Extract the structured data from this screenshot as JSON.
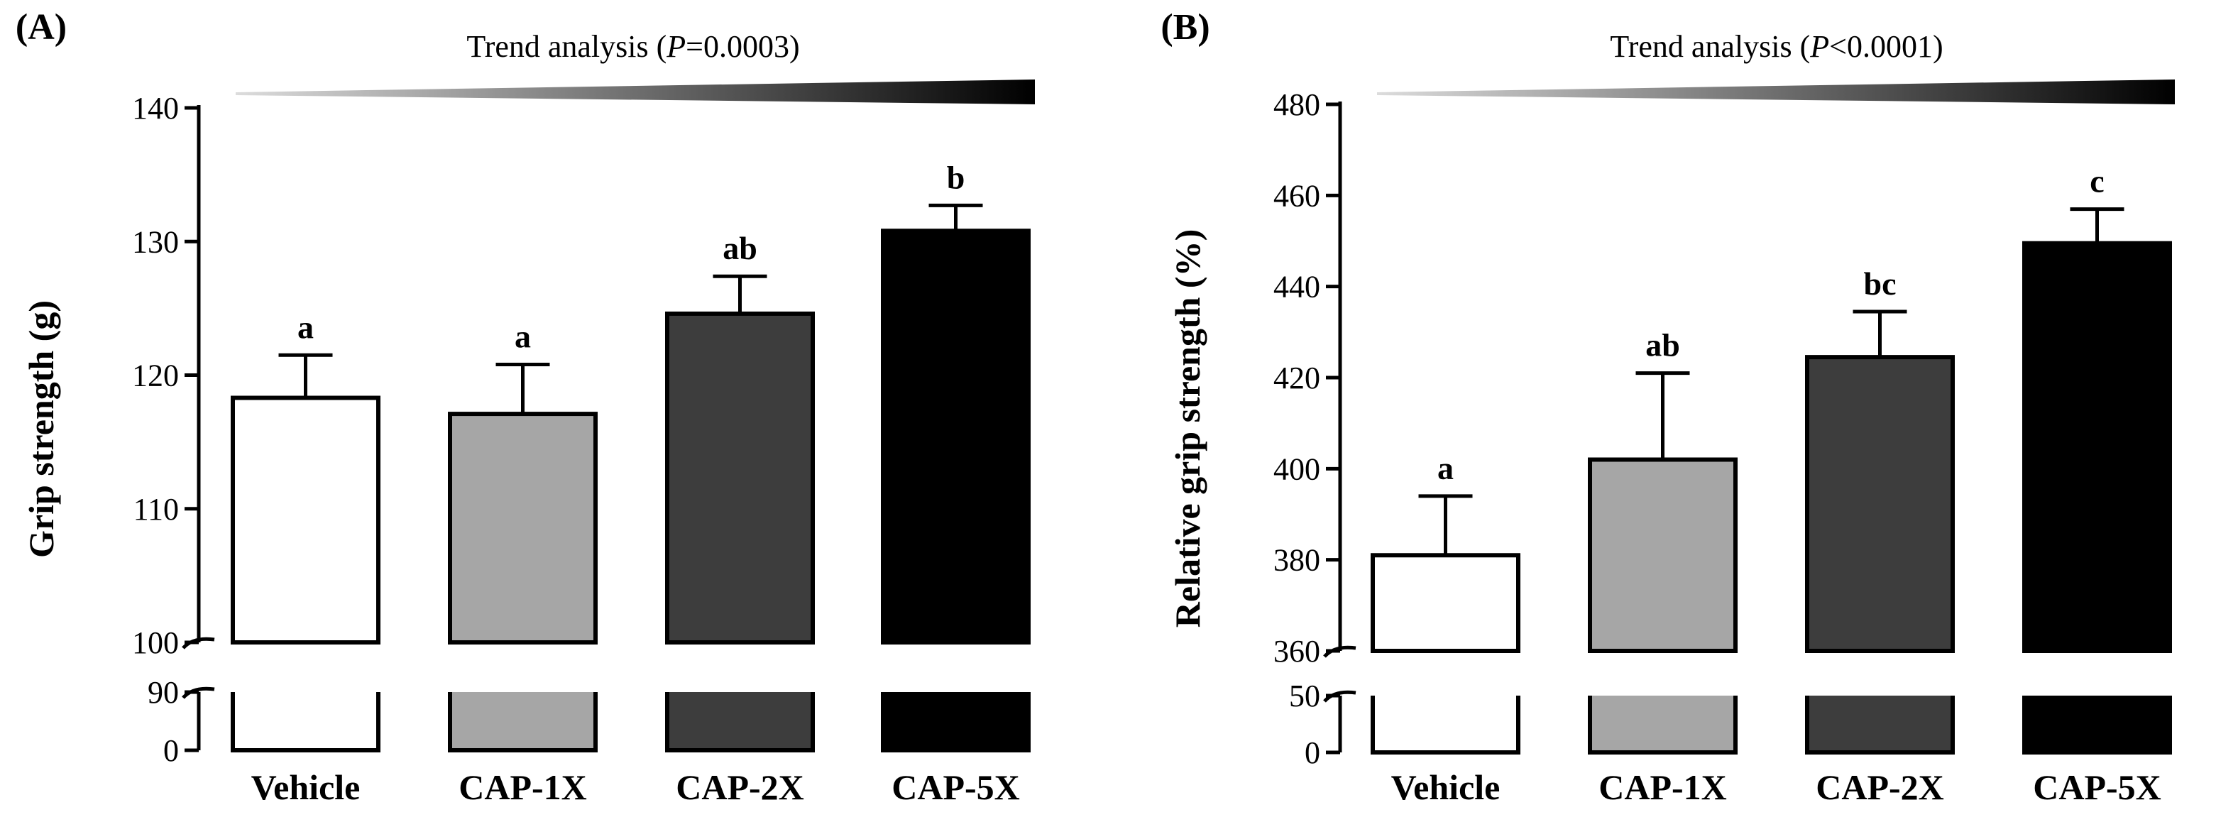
{
  "chart_data": [
    {
      "panel_label": "(A)",
      "type": "bar",
      "trend_text": {
        "prefix": "Trend analysis (",
        "italic": "P",
        "suffix": "=0.0003)"
      },
      "ylabel": "Grip strength (g)",
      "categories": [
        "Vehicle",
        "CAP-1X",
        "CAP-2X",
        "CAP-5X"
      ],
      "values": [
        118.3,
        117.1,
        124.6,
        130.8
      ],
      "errors": [
        3.2,
        3.7,
        2.8,
        1.9
      ],
      "sig_labels": [
        "a",
        "a",
        "ab",
        "b"
      ],
      "bar_colors": [
        "#ffffff",
        "#a6a6a6",
        "#3d3d3d",
        "#000000"
      ],
      "upper_axis": {
        "ylim": [
          100,
          140
        ],
        "ticks": [
          "100",
          "110",
          "120",
          "130",
          "140"
        ]
      },
      "lower_axis": {
        "ylim": [
          0,
          90
        ],
        "ticks": [
          "0",
          "90"
        ]
      },
      "axis_break": true
    },
    {
      "panel_label": "(B)",
      "type": "bar",
      "trend_text": {
        "prefix": "Trend analysis (",
        "italic": "P",
        "suffix": "<0.0001)"
      },
      "ylabel": "Relative grip strength (%)",
      "categories": [
        "Vehicle",
        "CAP-1X",
        "CAP-2X",
        "CAP-5X"
      ],
      "values": [
        381,
        402,
        424.5,
        449.5
      ],
      "errors": [
        13,
        19,
        10,
        7.5
      ],
      "sig_labels": [
        "a",
        "ab",
        "bc",
        "c"
      ],
      "bar_colors": [
        "#ffffff",
        "#a6a6a6",
        "#3d3d3d",
        "#000000"
      ],
      "upper_axis": {
        "ylim": [
          360,
          480
        ],
        "ticks": [
          "360",
          "380",
          "400",
          "420",
          "440",
          "460",
          "480"
        ]
      },
      "lower_axis": {
        "ylim": [
          0,
          50
        ],
        "ticks": [
          "0",
          "50"
        ]
      },
      "axis_break": true
    }
  ]
}
